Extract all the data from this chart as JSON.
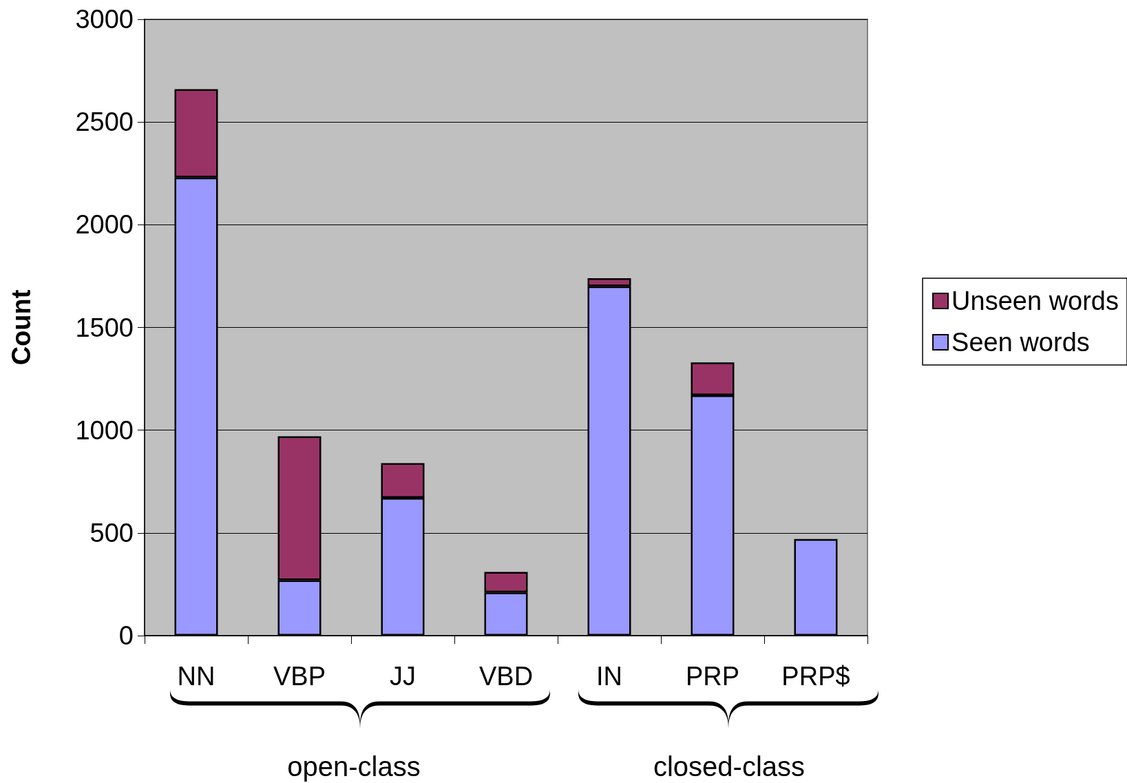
{
  "chart_data": {
    "type": "bar",
    "stacked": true,
    "ylabel": "Count",
    "categories": [
      "NN",
      "VBP",
      "JJ",
      "VBD",
      "IN",
      "PRP",
      "PRP$"
    ],
    "series": [
      {
        "name": "Seen words",
        "color": "#9999ff",
        "values": [
          2230,
          270,
          670,
          210,
          1700,
          1170,
          470
        ]
      },
      {
        "name": "Unseen words",
        "color": "#993366",
        "values": [
          430,
          700,
          170,
          100,
          40,
          160,
          null
        ]
      }
    ],
    "ylim": [
      0,
      3000
    ],
    "yticks": [
      0,
      500,
      1000,
      1500,
      2000,
      2500,
      3000
    ],
    "grid": "y",
    "legend": "right",
    "annotations": [
      "open-class",
      "closed-class"
    ]
  }
}
